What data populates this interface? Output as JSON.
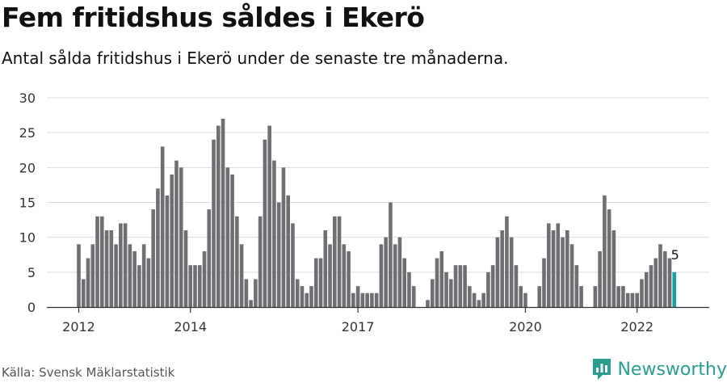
{
  "header": {
    "title": "Fem fritidshus såldes i Ekerö",
    "subtitle": "Antal sålda fritidshus i Ekerö under de senaste tre månaderna."
  },
  "footer": {
    "source": "Källa: Svensk Mäklarstatistik",
    "brand": "Newsworthy"
  },
  "colors": {
    "bar": "#6e6e73",
    "highlight": "#17a2a2",
    "grid": "#dddddd",
    "brand": "#2a9d8f"
  },
  "chart_data": {
    "type": "bar",
    "x_tick_labels": [
      "2012",
      "2014",
      "2017",
      "2020",
      "2022"
    ],
    "y_ticks": [
      "0",
      "5",
      "10",
      "15",
      "20",
      "25",
      "30"
    ],
    "ylim": [
      0,
      30
    ],
    "grid": true,
    "highlight_label": "5",
    "values": [
      9,
      4,
      7,
      9,
      13,
      13,
      11,
      11,
      9,
      12,
      12,
      9,
      8,
      6,
      9,
      7,
      14,
      17,
      23,
      16,
      19,
      21,
      20,
      11,
      6,
      6,
      6,
      8,
      14,
      24,
      26,
      27,
      20,
      19,
      13,
      9,
      4,
      1,
      4,
      13,
      24,
      26,
      21,
      15,
      20,
      16,
      12,
      4,
      3,
      2,
      3,
      7,
      7,
      11,
      9,
      13,
      13,
      9,
      8,
      2,
      3,
      2,
      2,
      2,
      2,
      9,
      10,
      15,
      9,
      10,
      7,
      5,
      3,
      null,
      null,
      1,
      4,
      7,
      8,
      5,
      4,
      6,
      6,
      6,
      3,
      2,
      1,
      2,
      5,
      6,
      10,
      11,
      13,
      10,
      6,
      3,
      2,
      null,
      null,
      3,
      7,
      12,
      11,
      12,
      10,
      11,
      9,
      6,
      3,
      null,
      null,
      3,
      8,
      16,
      14,
      11,
      3,
      3,
      2,
      2,
      2,
      4,
      5,
      6,
      7,
      9,
      8,
      7,
      5
    ]
  }
}
